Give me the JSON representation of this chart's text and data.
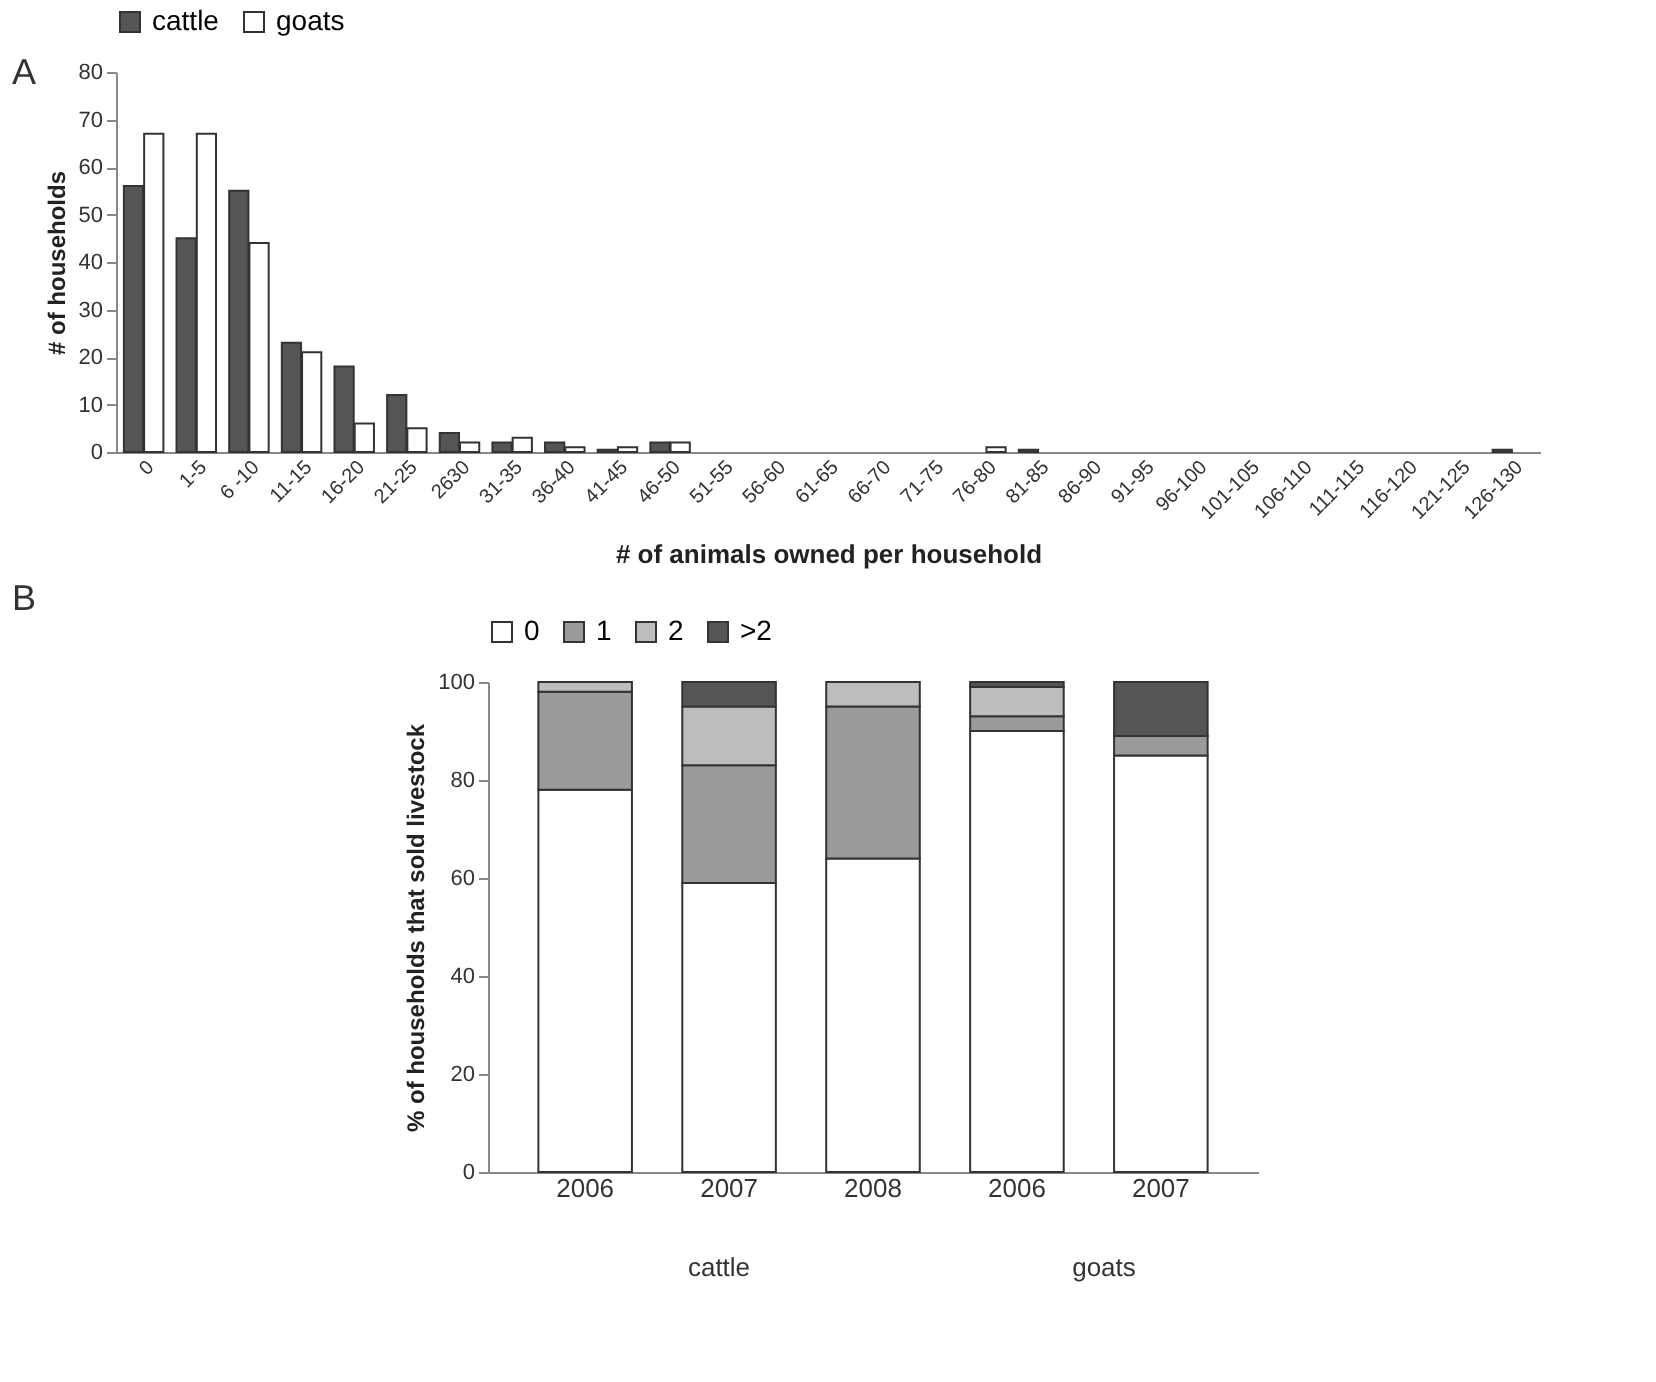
{
  "chart_data": [
    {
      "type": "bar",
      "xlabel": "# of animals owned per household",
      "ylabel": "# of households",
      "annotations": [
        "A"
      ],
      "categories": [
        "0",
        "1-5",
        "6 -10",
        "11-15",
        "16-20",
        "21-25",
        "2630",
        "31-35",
        "36-40",
        "41-45",
        "46-50",
        "51-55",
        "56-60",
        "61-65",
        "66-70",
        "71-75",
        "76-80",
        "81-85",
        "86-90",
        "91-95",
        "96-100",
        "101-105",
        "106-110",
        "111-115",
        "116-120",
        "121-125",
        "126-130"
      ],
      "series": [
        {
          "name": "cattle",
          "color": "#555555",
          "values": [
            56,
            45,
            55,
            23,
            18,
            12,
            4,
            2,
            2,
            0.5,
            2,
            0,
            0,
            0,
            0,
            0,
            0,
            0.5,
            0,
            0,
            0,
            0,
            0,
            0,
            0,
            0,
            0.5
          ]
        },
        {
          "name": "goats",
          "color": "#ffffff",
          "values": [
            67,
            67,
            44,
            21,
            6,
            5,
            2,
            3,
            1,
            1,
            2,
            0,
            0,
            0,
            0,
            0,
            1,
            0,
            0,
            0,
            0,
            0,
            0,
            0,
            0,
            0,
            0
          ]
        }
      ],
      "ylim": [
        0,
        80
      ],
      "yticks": [
        0,
        10,
        20,
        30,
        40,
        50,
        60,
        70,
        80
      ],
      "grid": false,
      "legend": "top"
    },
    {
      "type": "bar",
      "stacked": true,
      "ylabel": "% of households that sold livestock",
      "annotations": [
        "B",
        "cattle",
        "goats"
      ],
      "categories": [
        "2006",
        "2007",
        "2008",
        "2006",
        "2007"
      ],
      "series": [
        {
          "name": "0",
          "color": "#ffffff",
          "values": [
            78,
            59,
            64,
            90,
            85
          ]
        },
        {
          "name": "1",
          "color": "#9a9a9a",
          "values": [
            20,
            24,
            31,
            3,
            4
          ]
        },
        {
          "name": "2",
          "color": "#bdbdbd",
          "values": [
            2,
            12,
            5,
            6,
            0
          ]
        },
        {
          "name": ">2",
          "color": "#555555",
          "values": [
            0,
            5,
            0,
            1,
            11
          ]
        }
      ],
      "ylim": [
        0,
        100
      ],
      "yticks": [
        0,
        20,
        40,
        60,
        80,
        100
      ],
      "grid": false,
      "legend": "top"
    }
  ]
}
